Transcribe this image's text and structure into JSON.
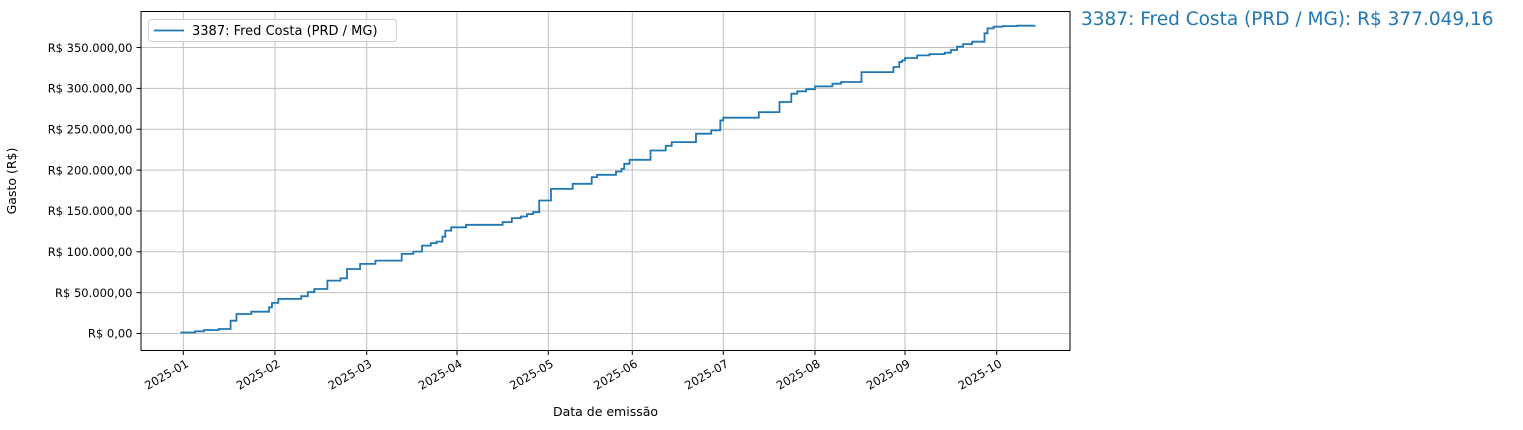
{
  "page": {
    "background": "#ffffff"
  },
  "annotation": {
    "text": "3387: Fred Costa (PRD / MG): R$ 377.049,16",
    "color": "#1f77b4"
  },
  "chart_data": {
    "type": "line",
    "step_style": "post",
    "title": "",
    "xlabel": "Data de emissão",
    "ylabel": "Gasto (R$)",
    "grid": true,
    "grid_color": "#c0c0c0",
    "line_color": "#1f77b4",
    "legend": {
      "position": "upper-left",
      "entries": [
        {
          "label": "3387: Fred Costa (PRD / MG)",
          "color": "#1f77b4"
        }
      ]
    },
    "x_ticks": [
      "2025-01",
      "2025-02",
      "2025-03",
      "2025-04",
      "2025-05",
      "2025-06",
      "2025-07",
      "2025-08",
      "2025-09",
      "2025-10"
    ],
    "y_ticks": [
      {
        "value": 0,
        "label": "R$ 0,00"
      },
      {
        "value": 50000,
        "label": "R$ 50.000,00"
      },
      {
        "value": 100000,
        "label": "R$ 100.000,00"
      },
      {
        "value": 150000,
        "label": "R$ 150.000,00"
      },
      {
        "value": 200000,
        "label": "R$ 200.000,00"
      },
      {
        "value": 250000,
        "label": "R$ 250.000,00"
      },
      {
        "value": 300000,
        "label": "R$ 300.000,00"
      },
      {
        "value": 350000,
        "label": "R$ 350.000,00"
      }
    ],
    "ylim": [
      -20800,
      394100
    ],
    "xlim": [
      "2024-12-18",
      "2025-10-26"
    ],
    "series": [
      {
        "name": "3387: Fred Costa (PRD / MG)",
        "color": "#1f77b4",
        "final_total": 377049.16,
        "points": [
          [
            "2024-12-31",
            1200
          ],
          [
            "2025-01-05",
            2700
          ],
          [
            "2025-01-08",
            4300
          ],
          [
            "2025-01-13",
            5500
          ],
          [
            "2025-01-17",
            15700
          ],
          [
            "2025-01-19",
            23900
          ],
          [
            "2025-01-24",
            26700
          ],
          [
            "2025-01-30",
            32100
          ],
          [
            "2025-01-31",
            37400
          ],
          [
            "2025-02-02",
            42300
          ],
          [
            "2025-02-09",
            45600
          ],
          [
            "2025-02-11",
            50500
          ],
          [
            "2025-02-13",
            54500
          ],
          [
            "2025-02-17",
            64700
          ],
          [
            "2025-02-21",
            67600
          ],
          [
            "2025-02-23",
            79000
          ],
          [
            "2025-02-27",
            85200
          ],
          [
            "2025-03-04",
            89200
          ],
          [
            "2025-03-13",
            97400
          ],
          [
            "2025-03-17",
            100200
          ],
          [
            "2025-03-20",
            107600
          ],
          [
            "2025-03-23",
            110500
          ],
          [
            "2025-03-25",
            112500
          ],
          [
            "2025-03-27",
            118500
          ],
          [
            "2025-03-28",
            126000
          ],
          [
            "2025-03-30",
            130000
          ],
          [
            "2025-04-04",
            133000
          ],
          [
            "2025-04-16",
            136300
          ],
          [
            "2025-04-19",
            141200
          ],
          [
            "2025-04-22",
            143200
          ],
          [
            "2025-04-24",
            146200
          ],
          [
            "2025-04-26",
            148500
          ],
          [
            "2025-04-28",
            162800
          ],
          [
            "2025-05-02",
            177000
          ],
          [
            "2025-05-10",
            183200
          ],
          [
            "2025-05-17",
            191400
          ],
          [
            "2025-05-19",
            194200
          ],
          [
            "2025-05-26",
            198300
          ],
          [
            "2025-05-28",
            201600
          ],
          [
            "2025-05-29",
            207700
          ],
          [
            "2025-05-31",
            212600
          ],
          [
            "2025-06-07",
            224000
          ],
          [
            "2025-06-12",
            229800
          ],
          [
            "2025-06-14",
            234300
          ],
          [
            "2025-06-22",
            244500
          ],
          [
            "2025-06-27",
            248600
          ],
          [
            "2025-06-30",
            260800
          ],
          [
            "2025-07-01",
            264100
          ],
          [
            "2025-07-13",
            271000
          ],
          [
            "2025-07-20",
            283300
          ],
          [
            "2025-07-24",
            293500
          ],
          [
            "2025-07-26",
            296500
          ],
          [
            "2025-07-29",
            299000
          ],
          [
            "2025-08-01",
            302500
          ],
          [
            "2025-08-07",
            305800
          ],
          [
            "2025-08-10",
            307800
          ],
          [
            "2025-08-17",
            320000
          ],
          [
            "2025-08-28",
            326200
          ],
          [
            "2025-08-30",
            332300
          ],
          [
            "2025-08-31",
            334300
          ],
          [
            "2025-09-01",
            337200
          ],
          [
            "2025-09-05",
            340400
          ],
          [
            "2025-09-09",
            342000
          ],
          [
            "2025-09-14",
            343700
          ],
          [
            "2025-09-16",
            347000
          ],
          [
            "2025-09-18",
            351000
          ],
          [
            "2025-09-20",
            354200
          ],
          [
            "2025-09-23",
            357200
          ],
          [
            "2025-09-27",
            367500
          ],
          [
            "2025-09-28",
            373500
          ],
          [
            "2025-09-30",
            375500
          ],
          [
            "2025-10-03",
            376300
          ],
          [
            "2025-10-08",
            376700
          ],
          [
            "2025-10-14",
            377049.16
          ]
        ]
      }
    ]
  }
}
